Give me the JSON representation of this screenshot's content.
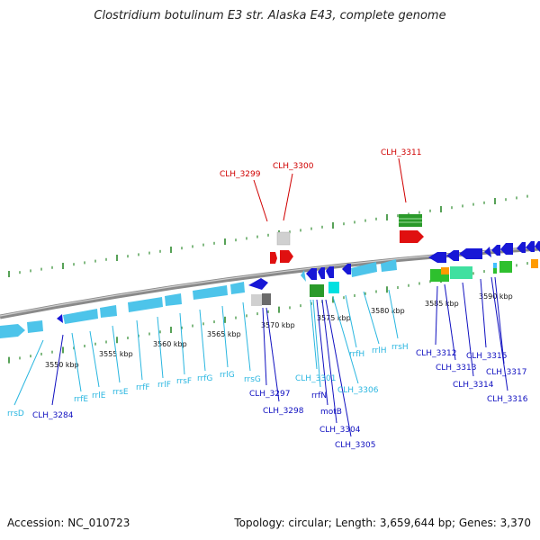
{
  "title": "Clostridium botulinum E3 str. Alaska E43, complete genome",
  "footer": {
    "accession": "Accession: NC_010723",
    "summary": "Topology: circular; Length: 3,659,644 bp; Genes: 3,370"
  },
  "colors": {
    "backbone": "#8a8a8a",
    "tick_marks": "#2e8b2e",
    "rna_gene": "#4dc4ea",
    "protein_gene": "#1717d6",
    "pseudo_gene": "#d0d0d0",
    "red_gene": "#e01010",
    "green_gene": "#2a9a2a",
    "label_rna": "#29b6e0",
    "label_protein": "#1010c0",
    "label_red": "#d00000"
  },
  "scale_labels": [
    "3550 kbp",
    "3555 kbp",
    "3560 kbp",
    "3565 kbp",
    "3570 kbp",
    "3575 kbp",
    "3580 kbp",
    "3585 kbp",
    "3590 kbp"
  ],
  "gene_labels": {
    "red": [
      "CLH_3299",
      "CLH_3300",
      "CLH_3311"
    ],
    "cyan": [
      "rrsD",
      "rrfE",
      "rrlE",
      "rrsE",
      "rrfF",
      "rrlF",
      "rrsF",
      "rrfG",
      "rrlG",
      "rrsG",
      "CLH_3301",
      "rrfH",
      "rrlH",
      "rrsH",
      "CLH_3306"
    ],
    "blue": [
      "CLH_3284",
      "CLH_3297",
      "CLH_3298",
      "rrfN",
      "motB",
      "CLH_3304",
      "CLH_3305",
      "CLH_3312",
      "CLH_3313",
      "CLH_3314",
      "CLH_3315",
      "CLH_3316",
      "CLH_3317"
    ]
  }
}
